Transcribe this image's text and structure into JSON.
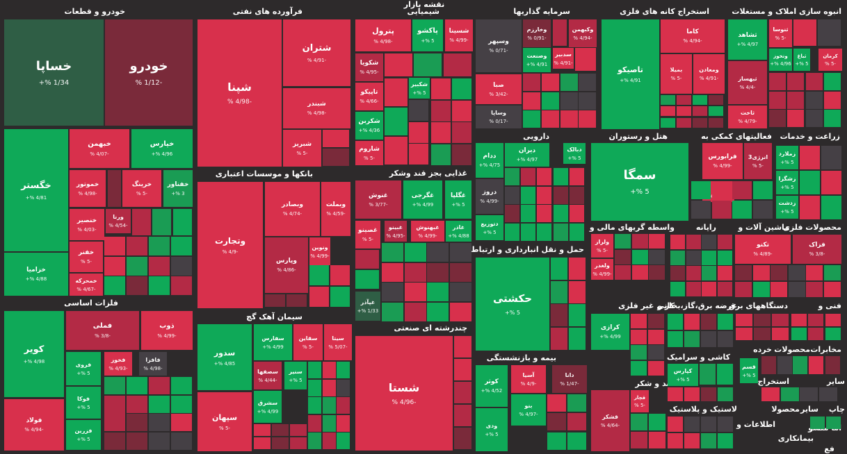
{
  "map_title": "نقشه بازار",
  "colors": {
    "background": "#2d2a2b",
    "strong_green": "#0fa958",
    "mid_green": "#1a9c54",
    "dark_green": "#2f5e45",
    "strong_red": "#d8304c",
    "mid_red": "#b32a45",
    "dark_red": "#7a2a3a",
    "neutral": "#454045"
  },
  "chart_data": {
    "type": "treemap",
    "value_unit": "%",
    "sectors": [
      {
        "name": "خودرو و قطعات",
        "stocks": [
          {
            "symbol": "خساپا",
            "change": "1/34 %+",
            "color": "#2f5e45"
          },
          {
            "symbol": "خودرو",
            "change": "-1/12 %",
            "color": "#7a2a3a"
          },
          {
            "symbol": "خبهمن",
            "change": "-4/07 %",
            "color": "#d8304c"
          },
          {
            "symbol": "خپارس",
            "change": "4/96 %+",
            "color": "#0fa958"
          },
          {
            "symbol": "خگستر",
            "change": "4/81 %+",
            "color": "#0fa958"
          },
          {
            "symbol": "خموتور",
            "change": "-4/98 %",
            "color": "#d8304c"
          },
          {
            "symbol": "خرینگ",
            "change": "-5 %",
            "color": "#d8304c"
          },
          {
            "symbol": "خفناور",
            "change": "3 %+",
            "color": "#1a9c54"
          },
          {
            "symbol": "خنصیر",
            "change": "-4/03 %",
            "color": "#d8304c"
          },
          {
            "symbol": "ورنا",
            "change": "-4/54 %",
            "color": "#b32a45"
          },
          {
            "symbol": "خفنر",
            "change": "-5 %",
            "color": "#d8304c"
          },
          {
            "symbol": "خمحرکه",
            "change": "-4/67 %",
            "color": "#d8304c"
          },
          {
            "symbol": "خزامیا",
            "change": "4/88 %+",
            "color": "#0fa958"
          }
        ]
      },
      {
        "name": "فرآورده های نفتی",
        "stocks": [
          {
            "symbol": "شپنا",
            "change": "-4/98 %",
            "color": "#d8304c"
          },
          {
            "symbol": "شتران",
            "change": "-4/91 %",
            "color": "#d8304c"
          },
          {
            "symbol": "شبندر",
            "change": "-4/98 %",
            "color": "#d8304c"
          },
          {
            "symbol": "شبریز",
            "change": "-5 %",
            "color": "#d8304c"
          }
        ]
      },
      {
        "name": "شیمیایی",
        "stocks": [
          {
            "symbol": "پترول",
            "change": "-4/98 %",
            "color": "#d8304c"
          },
          {
            "symbol": "پاکشو",
            "change": "5 %+",
            "color": "#0fa958"
          },
          {
            "symbol": "شسینا",
            "change": "-4/99 %",
            "color": "#d8304c"
          },
          {
            "symbol": "شکویا",
            "change": "-4/95 %",
            "color": "#b32a45"
          },
          {
            "symbol": "تاپیکو",
            "change": "-4/66 %",
            "color": "#d8304c"
          },
          {
            "symbol": "شکبیر",
            "change": "5 %+",
            "color": "#0fa958"
          },
          {
            "symbol": "شکربن",
            "change": "4/36 %+",
            "color": "#0fa958"
          },
          {
            "symbol": "شاروم",
            "change": "-5 %",
            "color": "#d8304c"
          }
        ]
      },
      {
        "name": "سرمایه گذاریها",
        "stocks": [
          {
            "symbol": "وسپهر",
            "change": "-0/71 %",
            "color": "#454045"
          },
          {
            "symbol": "وخارزم",
            "change": "-0/91 %",
            "color": "#7a2a3a"
          },
          {
            "symbol": "وکبهمن",
            "change": "-4/94 %",
            "color": "#b32a45"
          },
          {
            "symbol": "سدبیر",
            "change": "-4/91 %",
            "color": "#d8304c"
          },
          {
            "symbol": "وصنعت",
            "change": "4/91 %+",
            "color": "#0fa958"
          },
          {
            "symbol": "صبا",
            "change": "-3/42 %",
            "color": "#d8304c"
          },
          {
            "symbol": "وساپا",
            "change": "-0/17 %",
            "color": "#454045"
          }
        ]
      },
      {
        "name": "استخراج کانه های فلزی",
        "stocks": [
          {
            "symbol": "تاصیکو",
            "change": "4/91 %+",
            "color": "#0fa958"
          },
          {
            "symbol": "کاما",
            "change": "-4/94 %",
            "color": "#d8304c"
          },
          {
            "symbol": "بمیلا",
            "change": "-5 %",
            "color": "#d8304c"
          },
          {
            "symbol": "ومعادن",
            "change": "-4/91 %",
            "color": "#d8304c"
          }
        ]
      },
      {
        "name": "انبوه سازی املاک و مستغلات",
        "stocks": [
          {
            "symbol": "ثشاهد",
            "change": "4/97 %+",
            "color": "#0fa958"
          },
          {
            "symbol": "ثنوسا",
            "change": "-5 %",
            "color": "#d8304c"
          },
          {
            "symbol": "ثباغ",
            "change": "5 %+",
            "color": "#0fa958"
          },
          {
            "symbol": "وتخوز",
            "change": "4/96 %+",
            "color": "#0fa958"
          },
          {
            "symbol": "کرمان",
            "change": "-5 %",
            "color": "#d8304c"
          },
          {
            "symbol": "ثبهساز",
            "change": "-4/4 %",
            "color": "#b32a45"
          },
          {
            "symbol": "ثاخت",
            "change": "-4/79 %",
            "color": "#d8304c"
          }
        ]
      },
      {
        "name": "بانکها و موسسات اعتباری",
        "stocks": [
          {
            "symbol": "وتجارت",
            "change": "-4/9 %",
            "color": "#d8304c"
          },
          {
            "symbol": "وبصادر",
            "change": "-4/74 %",
            "color": "#d8304c"
          },
          {
            "symbol": "وبملت",
            "change": "-4/59 %",
            "color": "#d8304c"
          },
          {
            "symbol": "وپارس",
            "change": "-4/86 %",
            "color": "#b32a45"
          },
          {
            "symbol": "ونوین",
            "change": "-4/99 %",
            "color": "#d8304c"
          }
        ]
      },
      {
        "name": "غذایی بجز قند وشکر",
        "stocks": [
          {
            "symbol": "غنوش",
            "change": "-3/77 %",
            "color": "#b32a45"
          },
          {
            "symbol": "غگرجی",
            "change": "4/99 %+",
            "color": "#0fa958"
          },
          {
            "symbol": "غگلپا",
            "change": "5 %+",
            "color": "#0fa958"
          },
          {
            "symbol": "غصینو",
            "change": "-5 %",
            "color": "#d8304c"
          },
          {
            "symbol": "غبینو",
            "change": "-4/95 %",
            "color": "#b32a45"
          },
          {
            "symbol": "غبهنوش",
            "change": "-4/99 %",
            "color": "#d8304c"
          },
          {
            "symbol": "غاذر",
            "change": "4/88 %+",
            "color": "#0fa958"
          },
          {
            "symbol": "غپآذر",
            "change": "1/33 %+",
            "color": "#2f5e45"
          }
        ]
      },
      {
        "name": "دارویی",
        "stocks": [
          {
            "symbol": "دیران",
            "change": "4/97 %+",
            "color": "#0fa958"
          },
          {
            "symbol": "دبالک",
            "change": "5 %+",
            "color": "#0fa958"
          },
          {
            "symbol": "ددام",
            "change": "4/75 %+",
            "color": "#0fa958"
          },
          {
            "symbol": "دروز",
            "change": "-4/99 %",
            "color": "#454045"
          },
          {
            "symbol": "دتوزیع",
            "change": "5 %+",
            "color": "#0fa958"
          }
        ]
      },
      {
        "name": "هتل و رستوران",
        "stocks": [
          {
            "symbol": "سمگا",
            "change": "5 %+",
            "color": "#0fa958"
          }
        ]
      },
      {
        "name": "فعالیتهای کمکی به",
        "stocks": [
          {
            "symbol": "فرابورس",
            "change": "-4/99 %",
            "color": "#d8304c"
          },
          {
            "symbol": "انرژی3",
            "change": "-5 %",
            "color": "#b32a45"
          },
          {
            "symbol": "کالا",
            "change": "-4/94 %",
            "color": "#d8304c"
          }
        ]
      },
      {
        "name": "زراعت و خدمات",
        "stocks": [
          {
            "symbol": "زملارد",
            "change": "5 %+",
            "color": "#0fa958"
          },
          {
            "symbol": "زشگزا",
            "change": "5 %+",
            "color": "#0fa958"
          },
          {
            "symbol": "زدشت",
            "change": "5 %+",
            "color": "#0fa958"
          }
        ]
      },
      {
        "name": "فلزات اساسی",
        "stocks": [
          {
            "symbol": "کویر",
            "change": "4/98 %+",
            "color": "#0fa958"
          },
          {
            "symbol": "فملی",
            "change": "-3/8 %",
            "color": "#b32a45"
          },
          {
            "symbol": "ذوب",
            "change": "-4/99 %",
            "color": "#d8304c"
          },
          {
            "symbol": "فروی",
            "change": "5 %+",
            "color": "#0fa958"
          },
          {
            "symbol": "فخوز",
            "change": "-4/93 %",
            "color": "#d8304c"
          },
          {
            "symbol": "فافزا",
            "change": "-4/98 %",
            "color": "#454045"
          },
          {
            "symbol": "فوکا",
            "change": "5 %+",
            "color": "#0fa958"
          },
          {
            "symbol": "فالوم",
            "change": "-4/98 %",
            "color": "#b32a45"
          },
          {
            "symbol": "فزرین",
            "change": "5 %+",
            "color": "#0fa958"
          },
          {
            "symbol": "فولاد",
            "change": "-4/94 %",
            "color": "#d8304c"
          }
        ]
      },
      {
        "name": "سیمان آهک گچ",
        "stocks": [
          {
            "symbol": "سدور",
            "change": "4/85 %+",
            "color": "#0fa958"
          },
          {
            "symbol": "سفارس",
            "change": "4/99 %+",
            "color": "#0fa958"
          },
          {
            "symbol": "سقاین",
            "change": "-5 %",
            "color": "#d8304c"
          },
          {
            "symbol": "سیتا",
            "change": "-5/07 %",
            "color": "#d8304c"
          },
          {
            "symbol": "سصفها",
            "change": "-4/44 %",
            "color": "#b32a45"
          },
          {
            "symbol": "سنیر",
            "change": "5 %+",
            "color": "#0fa958"
          },
          {
            "symbol": "سشرق",
            "change": "4/99 %+",
            "color": "#0fa958"
          },
          {
            "symbol": "سپهان",
            "change": "-5 %",
            "color": "#d8304c"
          }
        ]
      },
      {
        "name": "چندرشته ای صنعتی",
        "stocks": [
          {
            "symbol": "شستا",
            "change": "-4/96 %",
            "color": "#d8304c"
          }
        ]
      },
      {
        "name": "حمل و نقل انبارداری و ارتباطات",
        "stocks": [
          {
            "symbol": "حکشتی",
            "change": "5 %+",
            "color": "#0fa958"
          }
        ]
      },
      {
        "name": "بیمه و بازنشستگی",
        "stocks": [
          {
            "symbol": "کوثر",
            "change": "4/52 %+",
            "color": "#0fa958"
          },
          {
            "symbol": "آسیا",
            "change": "-4/9 %",
            "color": "#d8304c"
          },
          {
            "symbol": "دانا",
            "change": "-1/47 %",
            "color": "#7a2a3a"
          },
          {
            "symbol": "بنو",
            "change": "-4/97 %",
            "color": "#0fa958"
          },
          {
            "symbol": "ودی",
            "change": "5 %+",
            "color": "#0fa958"
          }
        ]
      },
      {
        "name": "واسطه گریهای مالی و",
        "stocks": [
          {
            "symbol": "ولراز",
            "change": "-5 %",
            "color": "#d8304c"
          },
          {
            "symbol": "ولغدر",
            "change": "-4/99 %",
            "color": "#d8304c"
          }
        ]
      },
      {
        "name": "کانی غیر فلزی",
        "stocks": [
          {
            "symbol": "کرازی",
            "change": "4/99 %+",
            "color": "#0fa958"
          }
        ]
      },
      {
        "name": "قند و شکر",
        "stocks": [
          {
            "symbol": "قچار",
            "change": "-5 %",
            "color": "#d8304c"
          },
          {
            "symbol": "قشکر",
            "change": "-4/64 %",
            "color": "#b32a45"
          }
        ]
      },
      {
        "name": "ماشین آلات و",
        "stocks": [
          {
            "symbol": "تکنو",
            "change": "-4/89 %",
            "color": "#d8304c"
          }
        ]
      },
      {
        "name": "محصولات فلزی",
        "stocks": [
          {
            "symbol": "فزاک",
            "change": "-3/8 %",
            "color": "#b32a45"
          }
        ]
      },
      {
        "name": "کاشی و سرامیک",
        "stocks": [
          {
            "symbol": "کپارس",
            "change": "5 %+",
            "color": "#0fa958"
          }
        ]
      },
      {
        "name": "خرده",
        "stocks": [
          {
            "symbol": "قسم",
            "change": "5 %+",
            "color": "#0fa958"
          }
        ]
      }
    ],
    "other_labels": [
      "رایانه",
      "عرضه برق،گاز،بخار و",
      "دستگاههای برق",
      "فنی و",
      "لاستیک و پلاستیک",
      "مخابرات",
      "محصولات",
      "سایر",
      "استخراج",
      "چاپ",
      "سایر",
      "محصولا",
      "اطلاعات و",
      "بیمانکاری",
      "اما منسو",
      "فع"
    ]
  }
}
